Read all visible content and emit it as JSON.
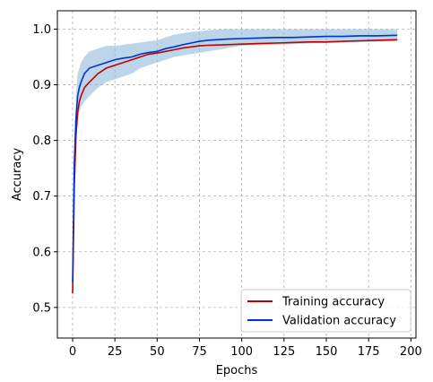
{
  "chart_data": {
    "type": "line",
    "title": "",
    "xlabel": "Epochs",
    "ylabel": "Accuracy",
    "xlim": [
      -9,
      203
    ],
    "ylim": [
      0.445,
      1.033
    ],
    "grid": true,
    "grid_style": "dashed",
    "legend_position": "lower-right",
    "x_ticks": [
      0,
      25,
      50,
      75,
      100,
      125,
      150,
      175,
      200
    ],
    "x_tick_labels": [
      "0",
      "25",
      "50",
      "75",
      "100",
      "125",
      "150",
      "175",
      "200"
    ],
    "y_ticks": [
      0.5,
      0.6,
      0.7,
      0.8,
      0.9,
      1.0
    ],
    "y_tick_labels": [
      "0.5",
      "0.6",
      "0.7",
      "0.8",
      "0.9",
      "1.0"
    ],
    "series": [
      {
        "name": "Training accuracy",
        "color": "#c00000",
        "x": [
          0,
          1,
          2,
          3,
          4,
          5,
          7,
          10,
          15,
          20,
          25,
          30,
          35,
          40,
          45,
          50,
          55,
          60,
          65,
          70,
          75,
          80,
          90,
          100,
          110,
          120,
          130,
          140,
          150,
          160,
          170,
          180,
          192
        ],
        "y": [
          0.525,
          0.72,
          0.81,
          0.85,
          0.87,
          0.88,
          0.895,
          0.905,
          0.92,
          0.93,
          0.935,
          0.94,
          0.945,
          0.95,
          0.955,
          0.957,
          0.96,
          0.963,
          0.966,
          0.968,
          0.97,
          0.971,
          0.972,
          0.973,
          0.974,
          0.975,
          0.976,
          0.977,
          0.977,
          0.978,
          0.979,
          0.98,
          0.981
        ]
      },
      {
        "name": "Validation accuracy",
        "color": "#0033cc",
        "x": [
          0,
          1,
          2,
          3,
          4,
          5,
          7,
          10,
          15,
          20,
          25,
          30,
          35,
          40,
          45,
          50,
          55,
          60,
          65,
          70,
          75,
          80,
          90,
          100,
          110,
          120,
          130,
          140,
          150,
          160,
          170,
          180,
          192
        ],
        "y": [
          0.545,
          0.76,
          0.84,
          0.88,
          0.895,
          0.905,
          0.92,
          0.93,
          0.935,
          0.94,
          0.945,
          0.948,
          0.95,
          0.955,
          0.958,
          0.96,
          0.965,
          0.968,
          0.972,
          0.975,
          0.978,
          0.98,
          0.982,
          0.983,
          0.984,
          0.985,
          0.985,
          0.986,
          0.987,
          0.987,
          0.988,
          0.988,
          0.989
        ]
      }
    ],
    "band": {
      "color": "#8fb9d9",
      "x": [
        0,
        1,
        2,
        3,
        5,
        7,
        10,
        15,
        20,
        25,
        30,
        35,
        40,
        45,
        50,
        55,
        60,
        70,
        80,
        90,
        100,
        120,
        140,
        160,
        192
      ],
      "upper": [
        0.56,
        0.8,
        0.88,
        0.92,
        0.94,
        0.95,
        0.96,
        0.965,
        0.97,
        0.97,
        0.972,
        0.974,
        0.976,
        0.978,
        0.98,
        0.985,
        0.99,
        0.995,
        0.998,
        1.0,
        1.0,
        1.0,
        1.0,
        1.0,
        1.0
      ],
      "lower": [
        0.53,
        0.72,
        0.79,
        0.84,
        0.86,
        0.87,
        0.88,
        0.895,
        0.905,
        0.91,
        0.915,
        0.92,
        0.93,
        0.935,
        0.94,
        0.945,
        0.95,
        0.955,
        0.96,
        0.965,
        0.97,
        0.972,
        0.974,
        0.976,
        0.978
      ]
    }
  }
}
